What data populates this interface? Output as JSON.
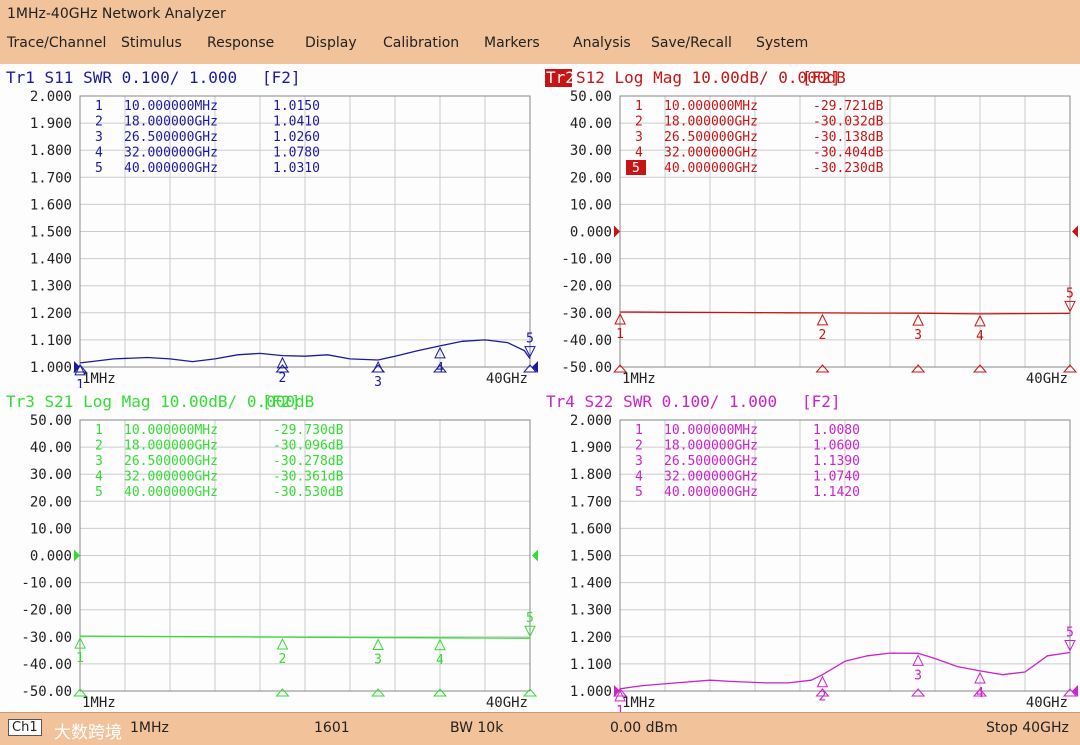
{
  "window": {
    "title": "1MHz-40GHz Network Analyzer"
  },
  "menu": [
    {
      "label": "Trace/Channel"
    },
    {
      "label": "Stimulus"
    },
    {
      "label": "Response"
    },
    {
      "label": "Display"
    },
    {
      "label": "Calibration"
    },
    {
      "label": "Markers"
    },
    {
      "label": "Analysis"
    },
    {
      "label": "Save/Recall"
    },
    {
      "label": "System"
    }
  ],
  "status": {
    "channel": "Ch1",
    "start": "1MHz",
    "points": "1601",
    "bw": "BW 10k",
    "power": "0.00 dBm",
    "stop": "Stop 40GHz",
    "watermark": "大数跨境"
  },
  "chart_data": [
    {
      "type": "line",
      "trace": "Tr1",
      "header": "Tr1 S11 SWR 0.100/ 1.000",
      "softkey": "[F2]",
      "color": "#1a1aa0",
      "ylim": [
        1.0,
        2.0
      ],
      "yticks": [
        "2.000",
        "1.900",
        "1.800",
        "1.700",
        "1.600",
        "1.500",
        "1.400",
        "1.300",
        "1.200",
        "1.100",
        "1.000"
      ],
      "ref_value": 1.0,
      "xlim_ghz": [
        0.001,
        40
      ],
      "start_label": "1MHz",
      "stop_label": "40GHz",
      "markers": [
        {
          "id": "1",
          "freq": "10.000000MHz",
          "f": 0.01,
          "value": "1.0150",
          "v": 1.015
        },
        {
          "id": "2",
          "freq": "18.000000GHz",
          "f": 18,
          "value": "1.0410",
          "v": 1.041
        },
        {
          "id": "3",
          "freq": "26.500000GHz",
          "f": 26.5,
          "value": "1.0260",
          "v": 1.026
        },
        {
          "id": "4",
          "freq": "32.000000GHz",
          "f": 32,
          "value": "1.0780",
          "v": 1.078
        },
        {
          "id": "5",
          "freq": "40.000000GHz",
          "f": 40,
          "value": "1.0310",
          "v": 1.031
        }
      ],
      "active_marker": "",
      "x": [
        0.001,
        1,
        3,
        6,
        8,
        10,
        12,
        14,
        16,
        18,
        20,
        22,
        24,
        26.5,
        28,
        30,
        32,
        34,
        36,
        38,
        39.5,
        40
      ],
      "y": [
        1.015,
        1.02,
        1.03,
        1.035,
        1.03,
        1.02,
        1.03,
        1.045,
        1.05,
        1.042,
        1.04,
        1.045,
        1.03,
        1.026,
        1.04,
        1.06,
        1.078,
        1.095,
        1.1,
        1.09,
        1.06,
        1.031
      ]
    },
    {
      "type": "line",
      "trace": "Tr2",
      "header": "S12 Log Mag 10.00dB/ 0.000dB",
      "softkey": "[F2]",
      "color": "#c81414",
      "ylim": [
        -50,
        50
      ],
      "yticks": [
        "50.00",
        "40.00",
        "30.00",
        "20.00",
        "10.00",
        "0.000",
        "-10.00",
        "-20.00",
        "-30.00",
        "-40.00",
        "-50.00"
      ],
      "ref_value": 0,
      "xlim_ghz": [
        0.001,
        40
      ],
      "start_label": "1MHz",
      "stop_label": "40GHz",
      "markers": [
        {
          "id": "1",
          "freq": "10.000000MHz",
          "f": 0.01,
          "value": "-29.721dB",
          "v": -29.721
        },
        {
          "id": "2",
          "freq": "18.000000GHz",
          "f": 18,
          "value": "-30.032dB",
          "v": -30.032
        },
        {
          "id": "3",
          "freq": "26.500000GHz",
          "f": 26.5,
          "value": "-30.138dB",
          "v": -30.138
        },
        {
          "id": "4",
          "freq": "32.000000GHz",
          "f": 32,
          "value": "-30.404dB",
          "v": -30.404
        },
        {
          "id": "5",
          "freq": "40.000000GHz",
          "f": 40,
          "value": "-30.230dB",
          "v": -30.23
        }
      ],
      "active_marker": "5",
      "x": [
        0.001,
        5,
        10,
        15,
        18,
        22,
        26.5,
        30,
        32,
        35,
        38,
        40
      ],
      "y": [
        -29.72,
        -29.8,
        -29.9,
        -30.0,
        -30.03,
        -30.1,
        -30.14,
        -30.3,
        -30.4,
        -30.3,
        -30.25,
        -30.23
      ]
    },
    {
      "type": "line",
      "trace": "Tr3",
      "header": "Tr3 S21 Log Mag 10.00dB/ 0.000dB",
      "softkey": "[F2]",
      "color": "#33dd33",
      "ylim": [
        -50,
        50
      ],
      "yticks": [
        "50.00",
        "40.00",
        "30.00",
        "20.00",
        "10.00",
        "0.000",
        "-10.00",
        "-20.00",
        "-30.00",
        "-40.00",
        "-50.00"
      ],
      "ref_value": 0,
      "xlim_ghz": [
        0.001,
        40
      ],
      "start_label": "1MHz",
      "stop_label": "40GHz",
      "markers": [
        {
          "id": "1",
          "freq": "10.000000MHz",
          "f": 0.01,
          "value": "-29.730dB",
          "v": -29.73
        },
        {
          "id": "2",
          "freq": "18.000000GHz",
          "f": 18,
          "value": "-30.096dB",
          "v": -30.096
        },
        {
          "id": "3",
          "freq": "26.500000GHz",
          "f": 26.5,
          "value": "-30.278dB",
          "v": -30.278
        },
        {
          "id": "4",
          "freq": "32.000000GHz",
          "f": 32,
          "value": "-30.361dB",
          "v": -30.361
        },
        {
          "id": "5",
          "freq": "40.000000GHz",
          "f": 40,
          "value": "-30.530dB",
          "v": -30.53
        }
      ],
      "active_marker": "",
      "x": [
        0.001,
        5,
        10,
        15,
        18,
        22,
        26.5,
        30,
        32,
        36,
        40
      ],
      "y": [
        -29.73,
        -29.85,
        -29.95,
        -30.05,
        -30.1,
        -30.2,
        -30.28,
        -30.33,
        -30.36,
        -30.45,
        -30.53
      ]
    },
    {
      "type": "line",
      "trace": "Tr4",
      "header": "Tr4 S22 SWR 0.100/ 1.000",
      "softkey": "[F2]",
      "color": "#cc22cc",
      "ylim": [
        1.0,
        2.0
      ],
      "yticks": [
        "2.000",
        "1.900",
        "1.800",
        "1.700",
        "1.600",
        "1.500",
        "1.400",
        "1.300",
        "1.200",
        "1.100",
        "1.000"
      ],
      "ref_value": 1.0,
      "xlim_ghz": [
        0.001,
        40
      ],
      "start_label": "1MHz",
      "stop_label": "40GHz",
      "markers": [
        {
          "id": "1",
          "freq": "10.000000MHz",
          "f": 0.01,
          "value": "1.0080",
          "v": 1.008
        },
        {
          "id": "2",
          "freq": "18.000000GHz",
          "f": 18,
          "value": "1.0600",
          "v": 1.06
        },
        {
          "id": "3",
          "freq": "26.500000GHz",
          "f": 26.5,
          "value": "1.1390",
          "v": 1.139
        },
        {
          "id": "4",
          "freq": "32.000000GHz",
          "f": 32,
          "value": "1.0740",
          "v": 1.074
        },
        {
          "id": "5",
          "freq": "40.000000GHz",
          "f": 40,
          "value": "1.1420",
          "v": 1.142
        }
      ],
      "active_marker": "",
      "x": [
        0.001,
        2,
        5,
        8,
        10,
        13,
        15,
        17,
        18,
        20,
        22,
        24,
        26.5,
        28,
        30,
        32,
        34,
        36,
        38,
        40
      ],
      "y": [
        1.008,
        1.02,
        1.03,
        1.04,
        1.035,
        1.03,
        1.03,
        1.04,
        1.06,
        1.11,
        1.13,
        1.14,
        1.139,
        1.12,
        1.09,
        1.074,
        1.06,
        1.07,
        1.13,
        1.142
      ]
    }
  ]
}
